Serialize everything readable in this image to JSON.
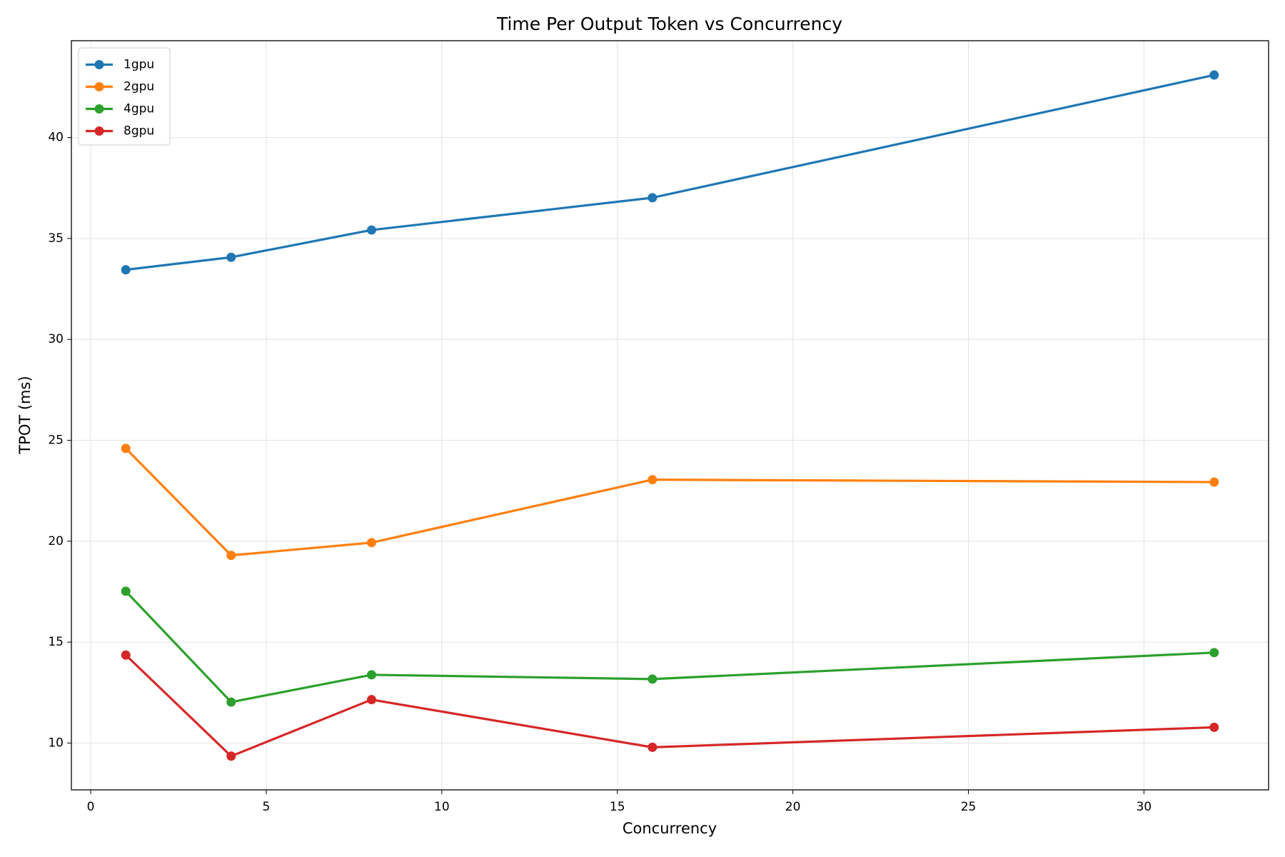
{
  "chart_data": {
    "type": "line",
    "title": "Time Per Output Token vs Concurrency",
    "x_label": "Concurrency",
    "y_label": "TPOT (ms)",
    "x": [
      1,
      4,
      8,
      16,
      32
    ],
    "series": [
      {
        "name": "1gpu",
        "color": "#1f77b4",
        "values": [
          33.45,
          34.07,
          35.42,
          37.02,
          43.1
        ]
      },
      {
        "name": "2gpu",
        "color": "#ff7f0e",
        "values": [
          24.6,
          19.3,
          19.93,
          23.05,
          22.93
        ]
      },
      {
        "name": "4gpu",
        "color": "#2ca02c",
        "values": [
          17.52,
          12.03,
          13.38,
          13.17,
          14.48
        ]
      },
      {
        "name": "8gpu",
        "color": "#d62728",
        "values": [
          14.36,
          9.35,
          12.15,
          9.79,
          10.78
        ]
      }
    ],
    "xlim": [
      -0.55,
      33.55
    ],
    "xticks": [
      0,
      5,
      10,
      15,
      20,
      25,
      30
    ],
    "ylim": [
      7.68,
      44.8
    ],
    "yticks": [
      10,
      15,
      20,
      25,
      30,
      35,
      40
    ],
    "grid": true,
    "legend": "upper-left"
  }
}
